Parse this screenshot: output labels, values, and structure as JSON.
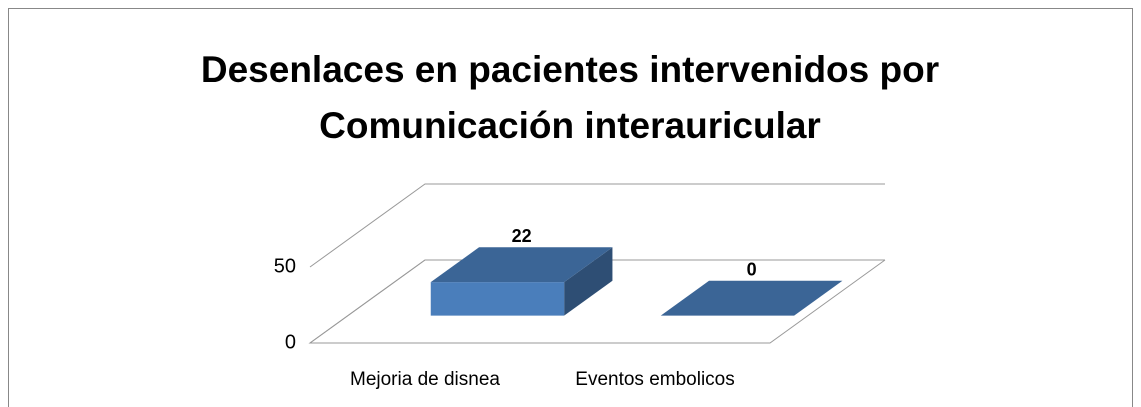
{
  "chart_data": {
    "type": "bar3d",
    "title": "Desenlaces en pacientes intervenidos por Comunicación interauricular",
    "categories": [
      "Mejoria de disnea",
      "Eventos embolicos"
    ],
    "values": [
      22,
      0
    ],
    "color": "#4a7ebb",
    "ylim": [
      0,
      50
    ],
    "yticks": [
      0,
      50
    ],
    "grid": true
  }
}
